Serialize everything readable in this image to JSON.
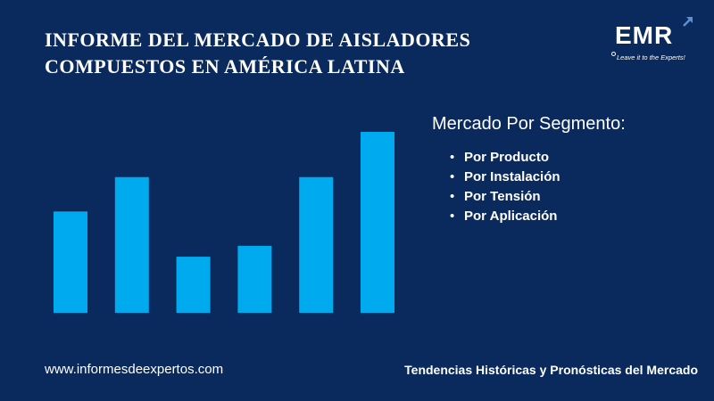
{
  "title_lines": [
    "INFORME DEL MERCADO DE AISLADORES",
    "COMPUESTOS EN AMÉRICA LATINA"
  ],
  "logo": {
    "text": "EMR",
    "tagline": "Leave it to the Experts!",
    "icon": "arrow-up-right-icon"
  },
  "segments": {
    "heading": "Mercado Por Segmento:",
    "bullet": "•",
    "items": [
      "Por Producto",
      "Por Instalación",
      "Por Tensión",
      "Por Aplicación"
    ]
  },
  "footer": {
    "website": "www.informesdeexpertos.com",
    "tagline": "Tendencias Históricas y Pronósticas del Mercado"
  },
  "colors": {
    "background": "#0a2a5e",
    "bar": "#00aaee",
    "text": "#ffffff"
  },
  "chart_data": {
    "type": "bar",
    "categories": [
      "",
      "",
      "",
      "",
      "",
      ""
    ],
    "values": [
      56,
      75,
      31,
      37,
      75,
      100
    ],
    "ylim": [
      0,
      100
    ],
    "grid": false,
    "legend": "none",
    "title": "",
    "xlabel": "",
    "ylabel": ""
  }
}
